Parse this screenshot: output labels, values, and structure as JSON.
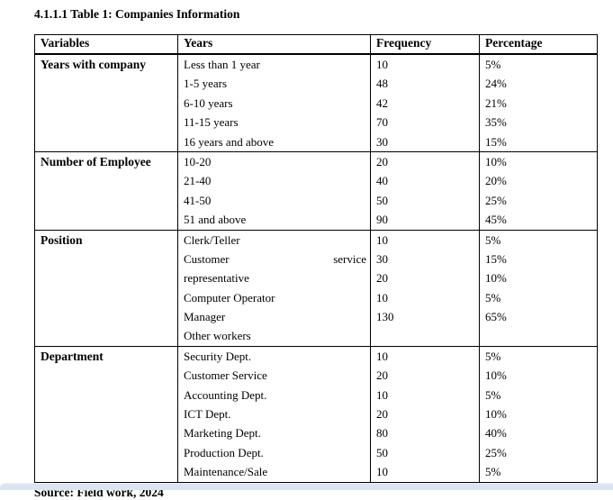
{
  "page": {
    "title": "4.1.1.1 Table 1: Companies Information",
    "source_note": "Source: Field work, 2024"
  },
  "table": {
    "headers": [
      "Variables",
      "Years",
      "Frequency",
      "Percentage"
    ],
    "groups": [
      {
        "variable": "Years with company",
        "rows": [
          {
            "label": "Less than 1 year",
            "frequency": "10",
            "percentage": "5%"
          },
          {
            "label": "1-5 years",
            "frequency": "48",
            "percentage": "24%"
          },
          {
            "label": "6-10 years",
            "frequency": "42",
            "percentage": "21%"
          },
          {
            "label": "11-15 years",
            "frequency": "70",
            "percentage": "35%"
          },
          {
            "label": "16 years and above",
            "frequency": "30",
            "percentage": "15%"
          }
        ]
      },
      {
        "variable": "Number of Employee",
        "rows": [
          {
            "label": "10-20",
            "frequency": "20",
            "percentage": "10%"
          },
          {
            "label": "21-40",
            "frequency": "40",
            "percentage": "20%"
          },
          {
            "label": "41-50",
            "frequency": "50",
            "percentage": "25%"
          },
          {
            "label": "51 and above",
            "frequency": "90",
            "percentage": "45%"
          }
        ]
      },
      {
        "variable": "Position",
        "rows": [
          {
            "label": "Clerk/Teller",
            "frequency": "10",
            "percentage": "5%"
          },
          {
            "label": "Customer service",
            "justified": true,
            "frequency": "30",
            "percentage": "15%"
          },
          {
            "label": "representative",
            "frequency": "20",
            "percentage": "10%"
          },
          {
            "label": "Computer Operator",
            "frequency": "10",
            "percentage": "5%"
          },
          {
            "label": "Manager",
            "frequency": "130",
            "percentage": "65%"
          },
          {
            "label": "Other workers",
            "frequency": "",
            "percentage": ""
          }
        ]
      },
      {
        "variable": "Department",
        "rows": [
          {
            "label": "Security Dept.",
            "frequency": "10",
            "percentage": "5%"
          },
          {
            "label": "Customer Service",
            "frequency": "20",
            "percentage": "10%"
          },
          {
            "label": "Accounting Dept.",
            "frequency": "10",
            "percentage": "5%"
          },
          {
            "label": "ICT Dept.",
            "frequency": "20",
            "percentage": "10%"
          },
          {
            "label": "Marketing Dept.",
            "frequency": "80",
            "percentage": "40%"
          },
          {
            "label": "Production Dept.",
            "frequency": "50",
            "percentage": "25%"
          },
          {
            "label": "Maintenance/Sale",
            "frequency": "10",
            "percentage": "5%"
          }
        ]
      }
    ]
  }
}
